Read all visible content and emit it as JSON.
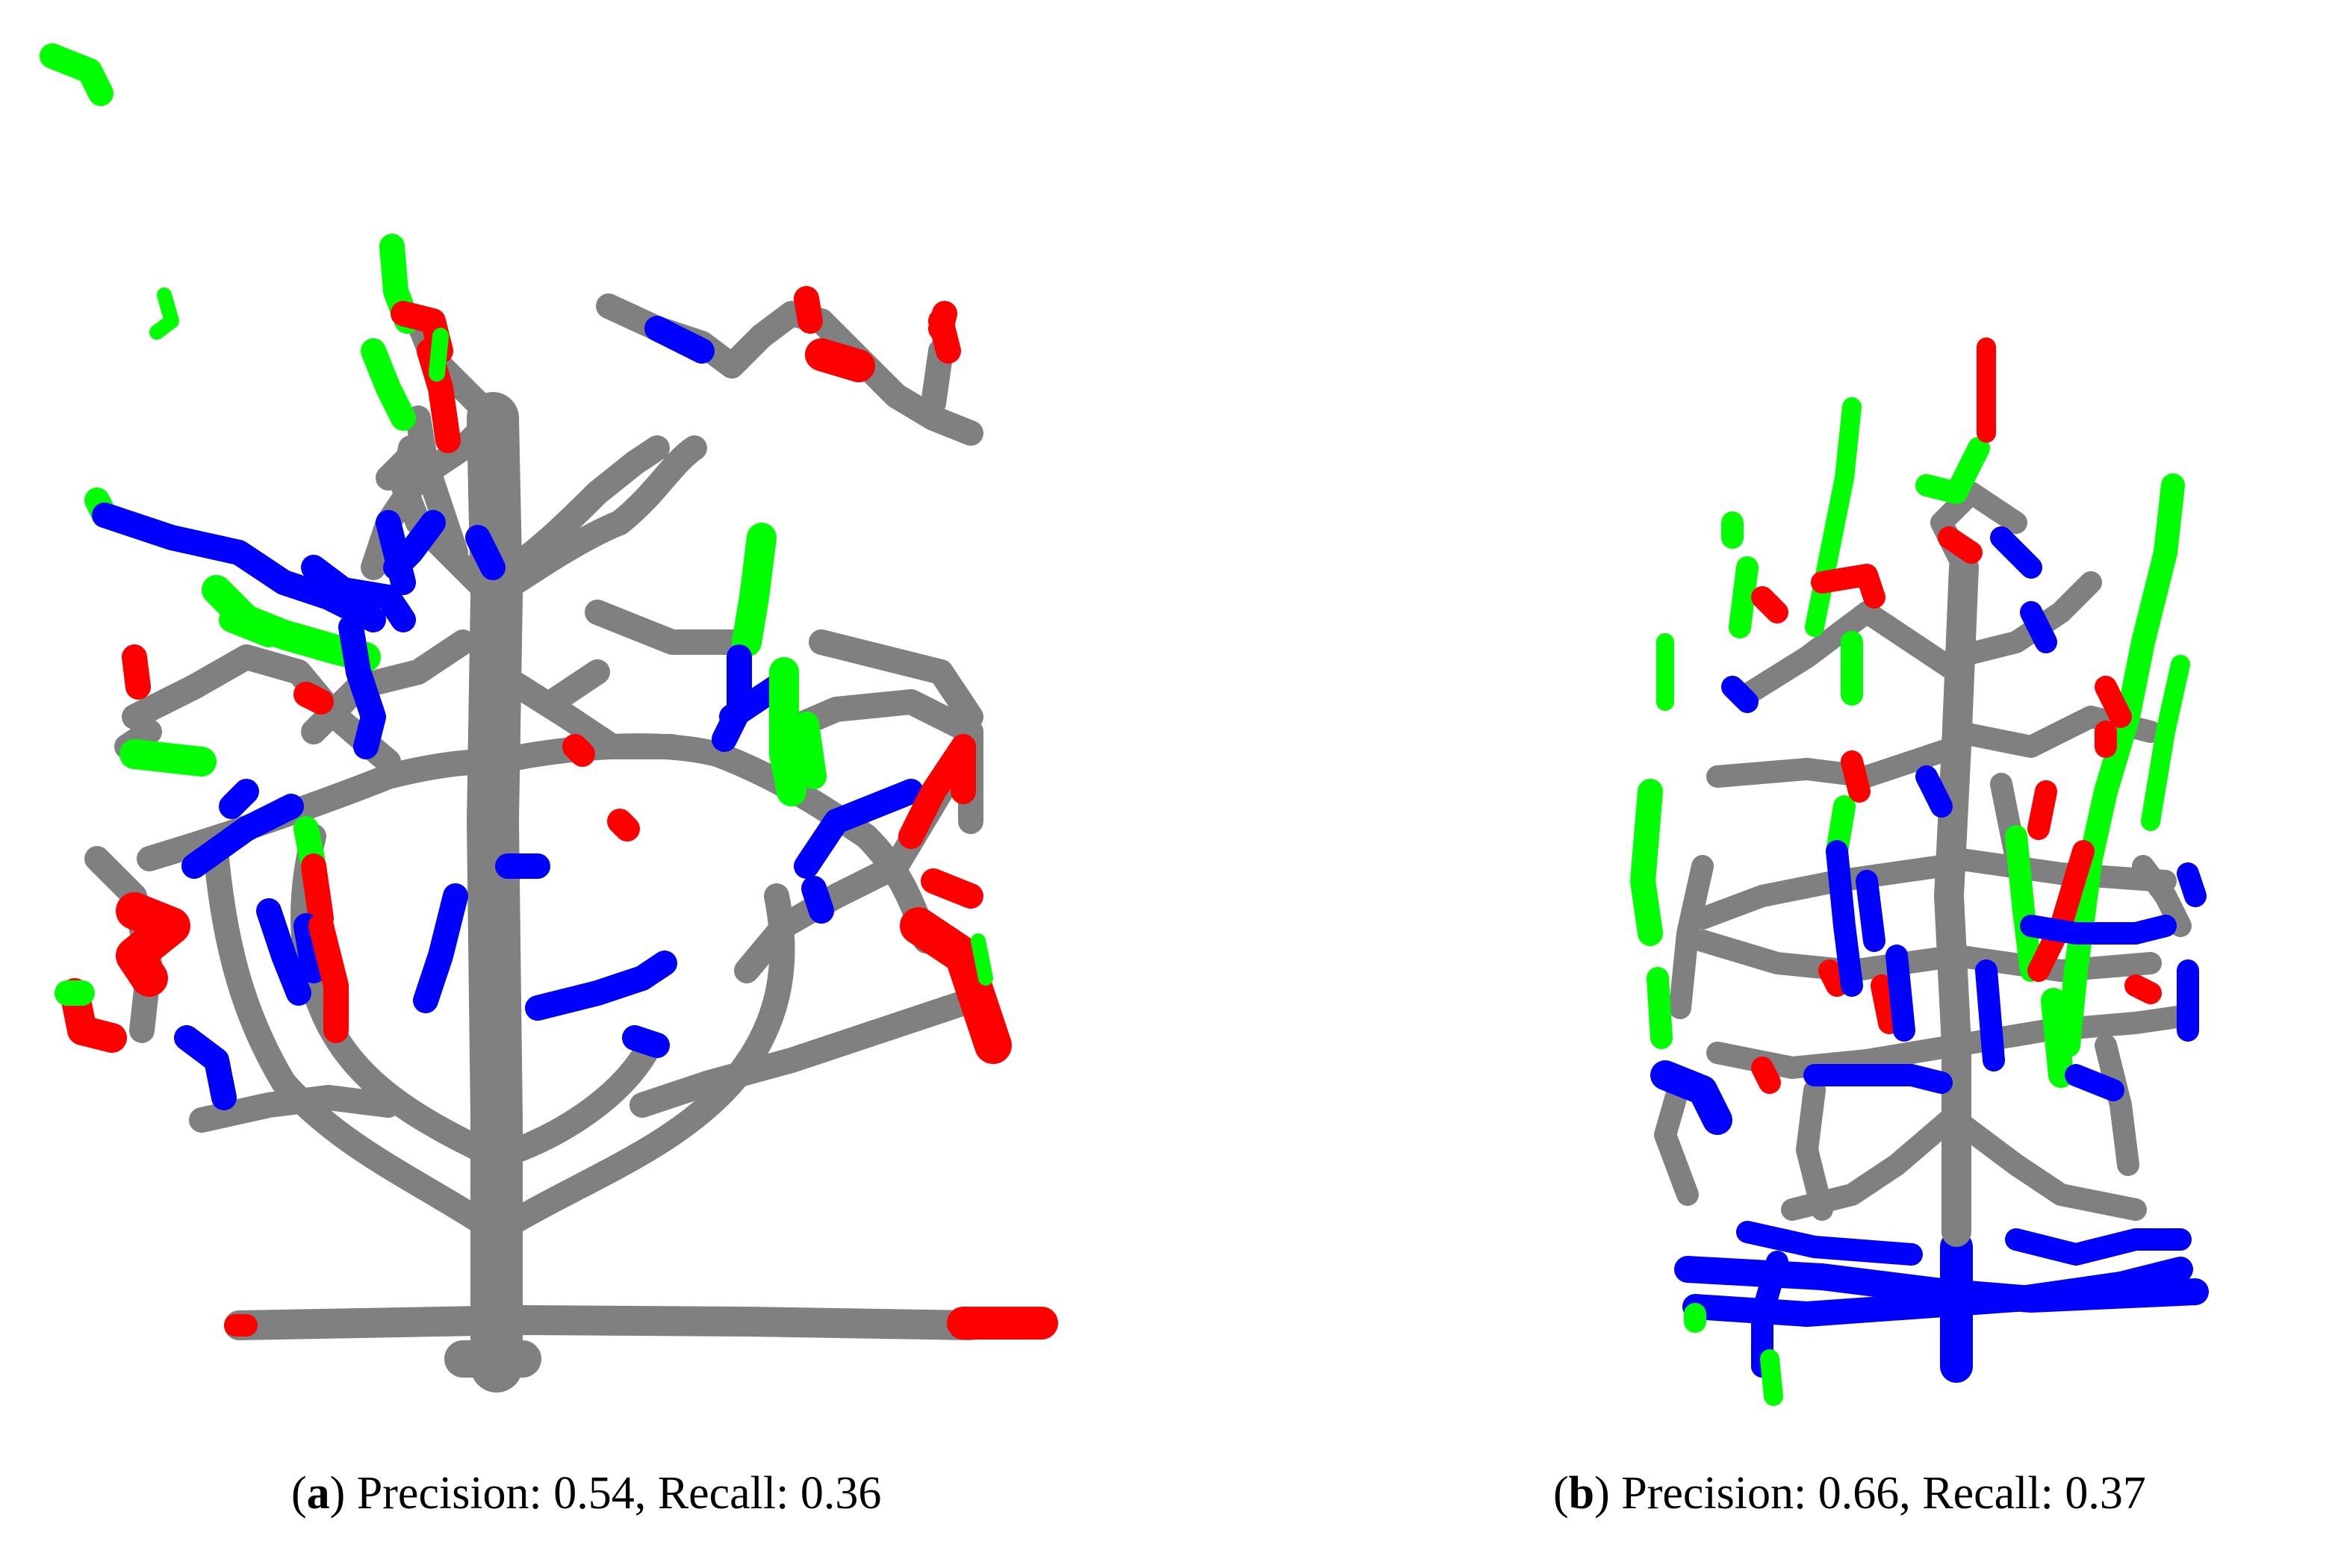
{
  "panels": [
    {
      "caption_parts": [
        "(",
        "a",
        ") Precision: 0.54, Recall: 0.36"
      ]
    },
    {
      "caption_parts": [
        "(",
        "b",
        ") Precision: 0.66, Recall: 0.37"
      ]
    }
  ]
}
